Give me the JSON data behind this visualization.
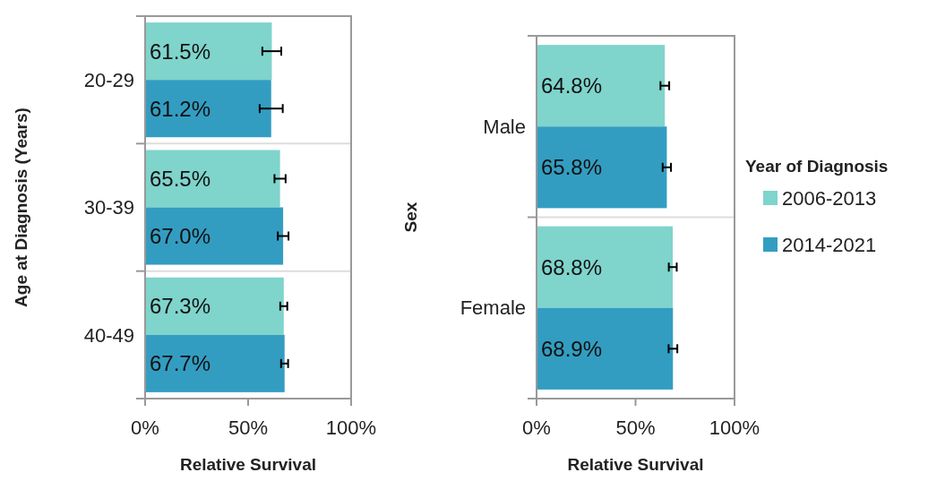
{
  "chart_data": [
    {
      "type": "bar",
      "orientation": "horizontal",
      "xlabel": "Relative Survival",
      "ylabel": "Age at Diagnosis (Years)",
      "categories": [
        "20-29",
        "30-39",
        "40-49"
      ],
      "xlim": [
        0,
        100
      ],
      "xticks": [
        {
          "value": 0,
          "label": "0%"
        },
        {
          "value": 50,
          "label": "50%"
        },
        {
          "value": 100,
          "label": "100%"
        }
      ],
      "series": [
        {
          "color": "#7fd4cc",
          "values": [
            61.5,
            65.5,
            67.3
          ],
          "value_labels": [
            "61.5%",
            "65.5%",
            "67.3%"
          ],
          "errors": [
            4.6,
            2.7,
            1.7
          ]
        },
        {
          "color": "#339dc1",
          "values": [
            61.2,
            67.0,
            67.7
          ],
          "value_labels": [
            "61.2%",
            "67.0%",
            "67.7%"
          ],
          "errors": [
            5.6,
            2.6,
            1.7
          ]
        }
      ]
    },
    {
      "type": "bar",
      "orientation": "horizontal",
      "xlabel": "Relative Survival",
      "ylabel": "Sex",
      "categories": [
        "Male",
        "Female"
      ],
      "xlim": [
        0,
        100
      ],
      "xticks": [
        {
          "value": 0,
          "label": "0%"
        },
        {
          "value": 50,
          "label": "50%"
        },
        {
          "value": 100,
          "label": "100%"
        }
      ],
      "legend": "right",
      "legend_title": "Year of Diagnosis",
      "series": [
        {
          "name": "2006-2013",
          "color": "#7fd4cc",
          "values": [
            64.8,
            68.8
          ],
          "value_labels": [
            "64.8%",
            "68.8%"
          ],
          "errors": [
            2.2,
            2.0
          ]
        },
        {
          "name": "2014-2021",
          "color": "#339dc1",
          "values": [
            65.8,
            68.9
          ],
          "value_labels": [
            "65.8%",
            "68.9%"
          ],
          "errors": [
            2.1,
            2.2
          ]
        }
      ]
    }
  ]
}
